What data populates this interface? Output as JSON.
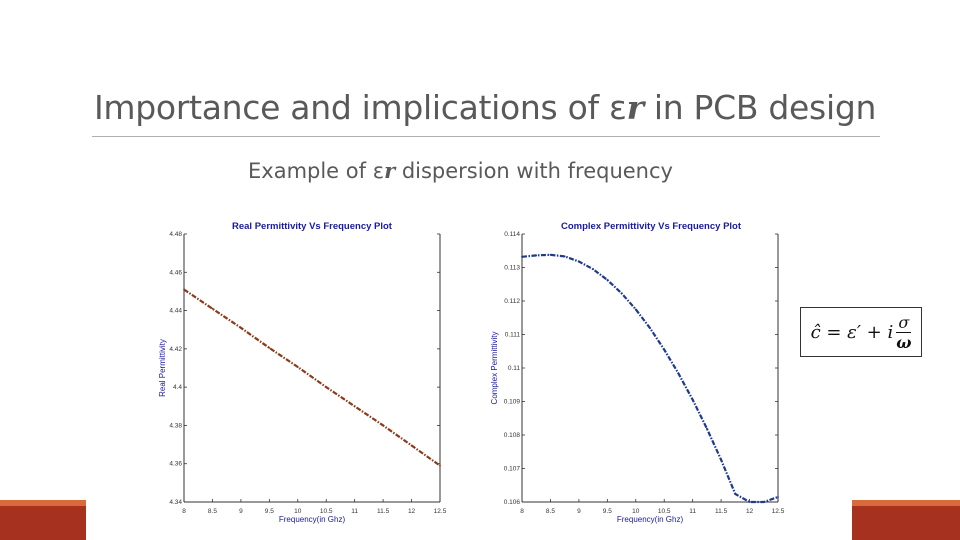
{
  "slide": {
    "title_prefix": "Importance and implications of ε",
    "title_sub": "r",
    "title_suffix": " in PCB design",
    "subtitle_prefix": "Example of ε",
    "subtitle_sub": "r",
    "subtitle_suffix": " dispersion with frequency"
  },
  "formula": {
    "lhs": "ĉ = ε′ + i",
    "numerator": "σ",
    "denominator": "ω"
  },
  "colors": {
    "accent_dark": "#a5311e",
    "accent_light": "#d96a3b",
    "real_series": "#8b3a1a",
    "complex_series": "#1f3a8a",
    "chart_title": "#1a1aa0",
    "axis_label": "#1a1aa0"
  },
  "chart_data": [
    {
      "type": "line",
      "title": "Real Permittivity Vs Frequency Plot",
      "xlabel": "Frequency(in Ghz)",
      "ylabel": "Real Permittivity",
      "xlim": [
        8,
        12.5
      ],
      "ylim": [
        4.34,
        4.48
      ],
      "x_ticks": [
        "8",
        "8.5",
        "9",
        "9.5",
        "10",
        "10.5",
        "11",
        "11.5",
        "12",
        "12.5"
      ],
      "y_ticks": [
        "4.34",
        "4.36",
        "4.38",
        "4.4",
        "4.42",
        "4.44",
        "4.46",
        "4.48"
      ],
      "grid": false,
      "series": [
        {
          "x": [
            8,
            8.5,
            9,
            9.5,
            10,
            10.5,
            11,
            11.5,
            12,
            12.5
          ],
          "values": [
            4.451,
            4.441,
            4.431,
            4.4205,
            4.4105,
            4.4,
            4.39,
            4.38,
            4.3695,
            4.359
          ]
        }
      ]
    },
    {
      "type": "line",
      "title": "Complex Permittivity Vs Frequency Plot",
      "xlabel": "Frequency(in Ghz)",
      "ylabel": "Complex Permittivity",
      "xlim": [
        8,
        12.5
      ],
      "ylim": [
        0.106,
        0.114
      ],
      "x_ticks": [
        "8",
        "8.5",
        "9",
        "9.5",
        "10",
        "10.5",
        "11",
        "11.5",
        "12",
        "12.5"
      ],
      "y_ticks": [
        "0.106",
        "0.107",
        "0.108",
        "0.109",
        "0.11",
        "0.111",
        "0.112",
        "0.113",
        "0.114"
      ],
      "grid": false,
      "series": [
        {
          "x": [
            8,
            8.25,
            8.5,
            8.75,
            9,
            9.25,
            9.5,
            9.75,
            10,
            10.25,
            10.5,
            10.75,
            11,
            11.25,
            11.5,
            11.75,
            12,
            12.25,
            12.5
          ],
          "values": [
            0.11332,
            0.11336,
            0.11338,
            0.11333,
            0.11318,
            0.11295,
            0.11263,
            0.11223,
            0.11175,
            0.11119,
            0.11055,
            0.10984,
            0.10905,
            0.10819,
            0.10726,
            0.10624,
            0.10515,
            0.10398,
            0.10615
          ]
        }
      ]
    }
  ]
}
